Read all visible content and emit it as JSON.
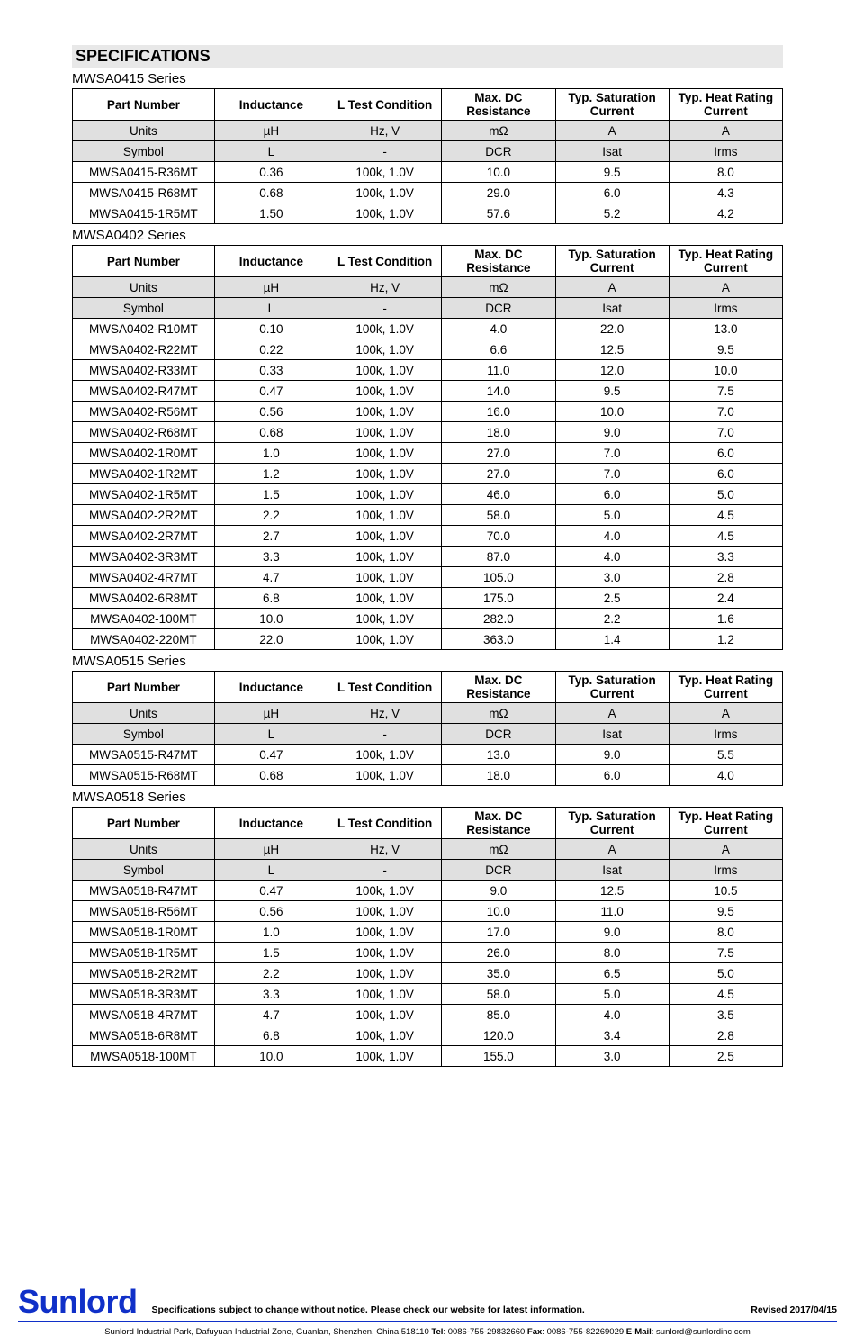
{
  "page_title": "SPECIFICATIONS",
  "headers": {
    "part": "Part Number",
    "inductance": "Inductance",
    "condition": "L Test Condition",
    "dcr": "Max. DC Resistance",
    "isat": "Typ. Saturation Current",
    "irms": "Typ. Heat Rating Current"
  },
  "units_row": [
    "Units",
    "µH",
    "Hz, V",
    "mΩ",
    "A",
    "A"
  ],
  "symbol_row": [
    "Symbol",
    "L",
    "-",
    "DCR",
    "Isat",
    "Irms"
  ],
  "series": [
    {
      "title": "MWSA0415 Series",
      "rows": [
        [
          "MWSA0415-R36MT",
          "0.36",
          "100k, 1.0V",
          "10.0",
          "9.5",
          "8.0"
        ],
        [
          "MWSA0415-R68MT",
          "0.68",
          "100k, 1.0V",
          "29.0",
          "6.0",
          "4.3"
        ],
        [
          "MWSA0415-1R5MT",
          "1.50",
          "100k, 1.0V",
          "57.6",
          "5.2",
          "4.2"
        ]
      ]
    },
    {
      "title": "MWSA0402 Series",
      "rows": [
        [
          "MWSA0402-R10MT",
          "0.10",
          "100k, 1.0V",
          "4.0",
          "22.0",
          "13.0"
        ],
        [
          "MWSA0402-R22MT",
          "0.22",
          "100k, 1.0V",
          "6.6",
          "12.5",
          "9.5"
        ],
        [
          "MWSA0402-R33MT",
          "0.33",
          "100k, 1.0V",
          "11.0",
          "12.0",
          "10.0"
        ],
        [
          "MWSA0402-R47MT",
          "0.47",
          "100k, 1.0V",
          "14.0",
          "9.5",
          "7.5"
        ],
        [
          "MWSA0402-R56MT",
          "0.56",
          "100k, 1.0V",
          "16.0",
          "10.0",
          "7.0"
        ],
        [
          "MWSA0402-R68MT",
          "0.68",
          "100k, 1.0V",
          "18.0",
          "9.0",
          "7.0"
        ],
        [
          "MWSA0402-1R0MT",
          "1.0",
          "100k, 1.0V",
          "27.0",
          "7.0",
          "6.0"
        ],
        [
          "MWSA0402-1R2MT",
          "1.2",
          "100k, 1.0V",
          "27.0",
          "7.0",
          "6.0"
        ],
        [
          "MWSA0402-1R5MT",
          "1.5",
          "100k, 1.0V",
          "46.0",
          "6.0",
          "5.0"
        ],
        [
          "MWSA0402-2R2MT",
          "2.2",
          "100k, 1.0V",
          "58.0",
          "5.0",
          "4.5"
        ],
        [
          "MWSA0402-2R7MT",
          "2.7",
          "100k, 1.0V",
          "70.0",
          "4.0",
          "4.5"
        ],
        [
          "MWSA0402-3R3MT",
          "3.3",
          "100k, 1.0V",
          "87.0",
          "4.0",
          "3.3"
        ],
        [
          "MWSA0402-4R7MT",
          "4.7",
          "100k, 1.0V",
          "105.0",
          "3.0",
          "2.8"
        ],
        [
          "MWSA0402-6R8MT",
          "6.8",
          "100k, 1.0V",
          "175.0",
          "2.5",
          "2.4"
        ],
        [
          "MWSA0402-100MT",
          "10.0",
          "100k, 1.0V",
          "282.0",
          "2.2",
          "1.6"
        ],
        [
          "MWSA0402-220MT",
          "22.0",
          "100k, 1.0V",
          "363.0",
          "1.4",
          "1.2"
        ]
      ]
    },
    {
      "title": "MWSA0515 Series",
      "rows": [
        [
          "MWSA0515-R47MT",
          "0.47",
          "100k, 1.0V",
          "13.0",
          "9.0",
          "5.5"
        ],
        [
          "MWSA0515-R68MT",
          "0.68",
          "100k, 1.0V",
          "18.0",
          "6.0",
          "4.0"
        ]
      ]
    },
    {
      "title": "MWSA0518 Series",
      "rows": [
        [
          "MWSA0518-R47MT",
          "0.47",
          "100k, 1.0V",
          "9.0",
          "12.5",
          "10.5"
        ],
        [
          "MWSA0518-R56MT",
          "0.56",
          "100k, 1.0V",
          "10.0",
          "11.0",
          "9.5"
        ],
        [
          "MWSA0518-1R0MT",
          "1.0",
          "100k, 1.0V",
          "17.0",
          "9.0",
          "8.0"
        ],
        [
          "MWSA0518-1R5MT",
          "1.5",
          "100k, 1.0V",
          "26.0",
          "8.0",
          "7.5"
        ],
        [
          "MWSA0518-2R2MT",
          "2.2",
          "100k, 1.0V",
          "35.0",
          "6.5",
          "5.0"
        ],
        [
          "MWSA0518-3R3MT",
          "3.3",
          "100k, 1.0V",
          "58.0",
          "5.0",
          "4.5"
        ],
        [
          "MWSA0518-4R7MT",
          "4.7",
          "100k, 1.0V",
          "85.0",
          "4.0",
          "3.5"
        ],
        [
          "MWSA0518-6R8MT",
          "6.8",
          "100k, 1.0V",
          "120.0",
          "3.4",
          "2.8"
        ],
        [
          "MWSA0518-100MT",
          "10.0",
          "100k, 1.0V",
          "155.0",
          "3.0",
          "2.5"
        ]
      ]
    }
  ],
  "footer": {
    "brand": "Sunlord",
    "brand_color": "#1030c8",
    "notice": "Specifications subject to change without notice. Please check our website for latest information.",
    "revised": "Revised 2017/04/15",
    "address_pre": "Sunlord Industrial Park, Dafuyuan Industrial Zone, Guanlan, Shenzhen, China 518110 ",
    "tel_label": "Tel",
    "tel": ": 0086-755-29832660 ",
    "fax_label": "Fax",
    "fax": ": 0086-755-82269029 ",
    "email_label": "E-Mail",
    "email": ": sunlord@sunlordinc.com"
  },
  "style": {
    "shaded_bg": "#e0e0e0",
    "title_bg": "#e8e8e8",
    "border_color": "#000000",
    "font_family": "Arial",
    "body_fontsize": 13.5
  }
}
